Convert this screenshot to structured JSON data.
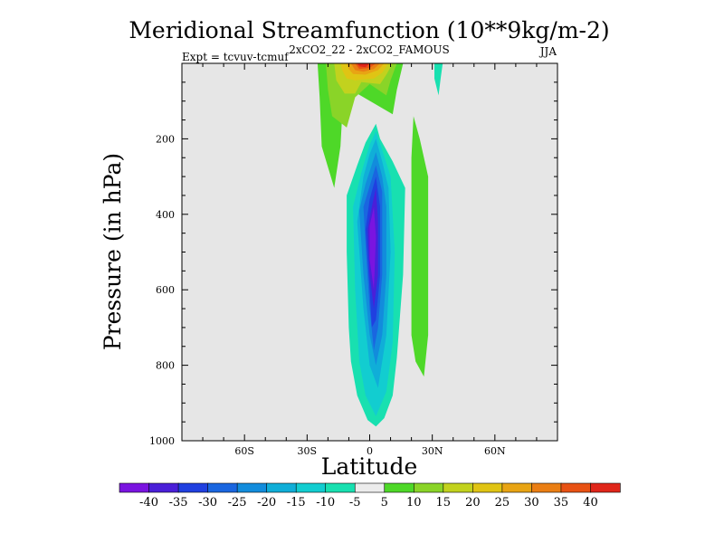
{
  "chart_data": {
    "type": "contour",
    "title": "Meridional Streamfunction (10**9kg/m-2)",
    "left_label": "Expt = tcvuv-tcmuf",
    "center_label": "2xCO2_22 - 2xCO2_FAMOUS",
    "right_label": "JJA",
    "xlabel": "Latitude",
    "ylabel": "Pressure (in hPa)",
    "xlim": [
      -90,
      90
    ],
    "ylim": [
      1000,
      0
    ],
    "x_ticks": [
      {
        "value": -60,
        "label": "60S"
      },
      {
        "value": -30,
        "label": "30S"
      },
      {
        "value": 0,
        "label": "0"
      },
      {
        "value": 30,
        "label": "30N"
      },
      {
        "value": 60,
        "label": "60N"
      }
    ],
    "y_ticks": [
      {
        "value": 200,
        "label": "200"
      },
      {
        "value": 400,
        "label": "400"
      },
      {
        "value": 600,
        "label": "600"
      },
      {
        "value": 800,
        "label": "800"
      },
      {
        "value": 1000,
        "label": "1000"
      }
    ],
    "background_color": "#e6e6e6",
    "levels": [
      -40,
      -35,
      -30,
      -25,
      -20,
      -15,
      -10,
      -5,
      5,
      10,
      15,
      20,
      25,
      30,
      35,
      40
    ],
    "level_labels": [
      "-40",
      "-35",
      "-30",
      "-25",
      "-20",
      "-15",
      "-10",
      "-5",
      "5",
      "10",
      "15",
      "20",
      "25",
      "30",
      "35",
      "40"
    ],
    "colors": [
      "#7a14e0",
      "#4a1fd8",
      "#2040e0",
      "#1a66e0",
      "#128cdc",
      "#10aed8",
      "#12cdd0",
      "#18e0b0",
      "#ececec",
      "#4ed828",
      "#8ad428",
      "#c2d21e",
      "#e0c414",
      "#e8a414",
      "#ea7e14",
      "#e85214",
      "#e0261a"
    ],
    "features": [
      {
        "name": "negative cell",
        "peak": -40,
        "lat_center": 2,
        "pressure_range": [
          160,
          960
        ]
      },
      {
        "name": "positive upper cell",
        "peak": 40,
        "lat_center": -5,
        "pressure_range": [
          0,
          330
        ]
      },
      {
        "name": "positive band 30N",
        "peak": 5,
        "lat_center": 26,
        "pressure_range": [
          150,
          830
        ]
      },
      {
        "name": "negative upper 33N",
        "peak": -5,
        "lat_center": 33,
        "pressure_range": [
          0,
          85
        ]
      }
    ]
  }
}
